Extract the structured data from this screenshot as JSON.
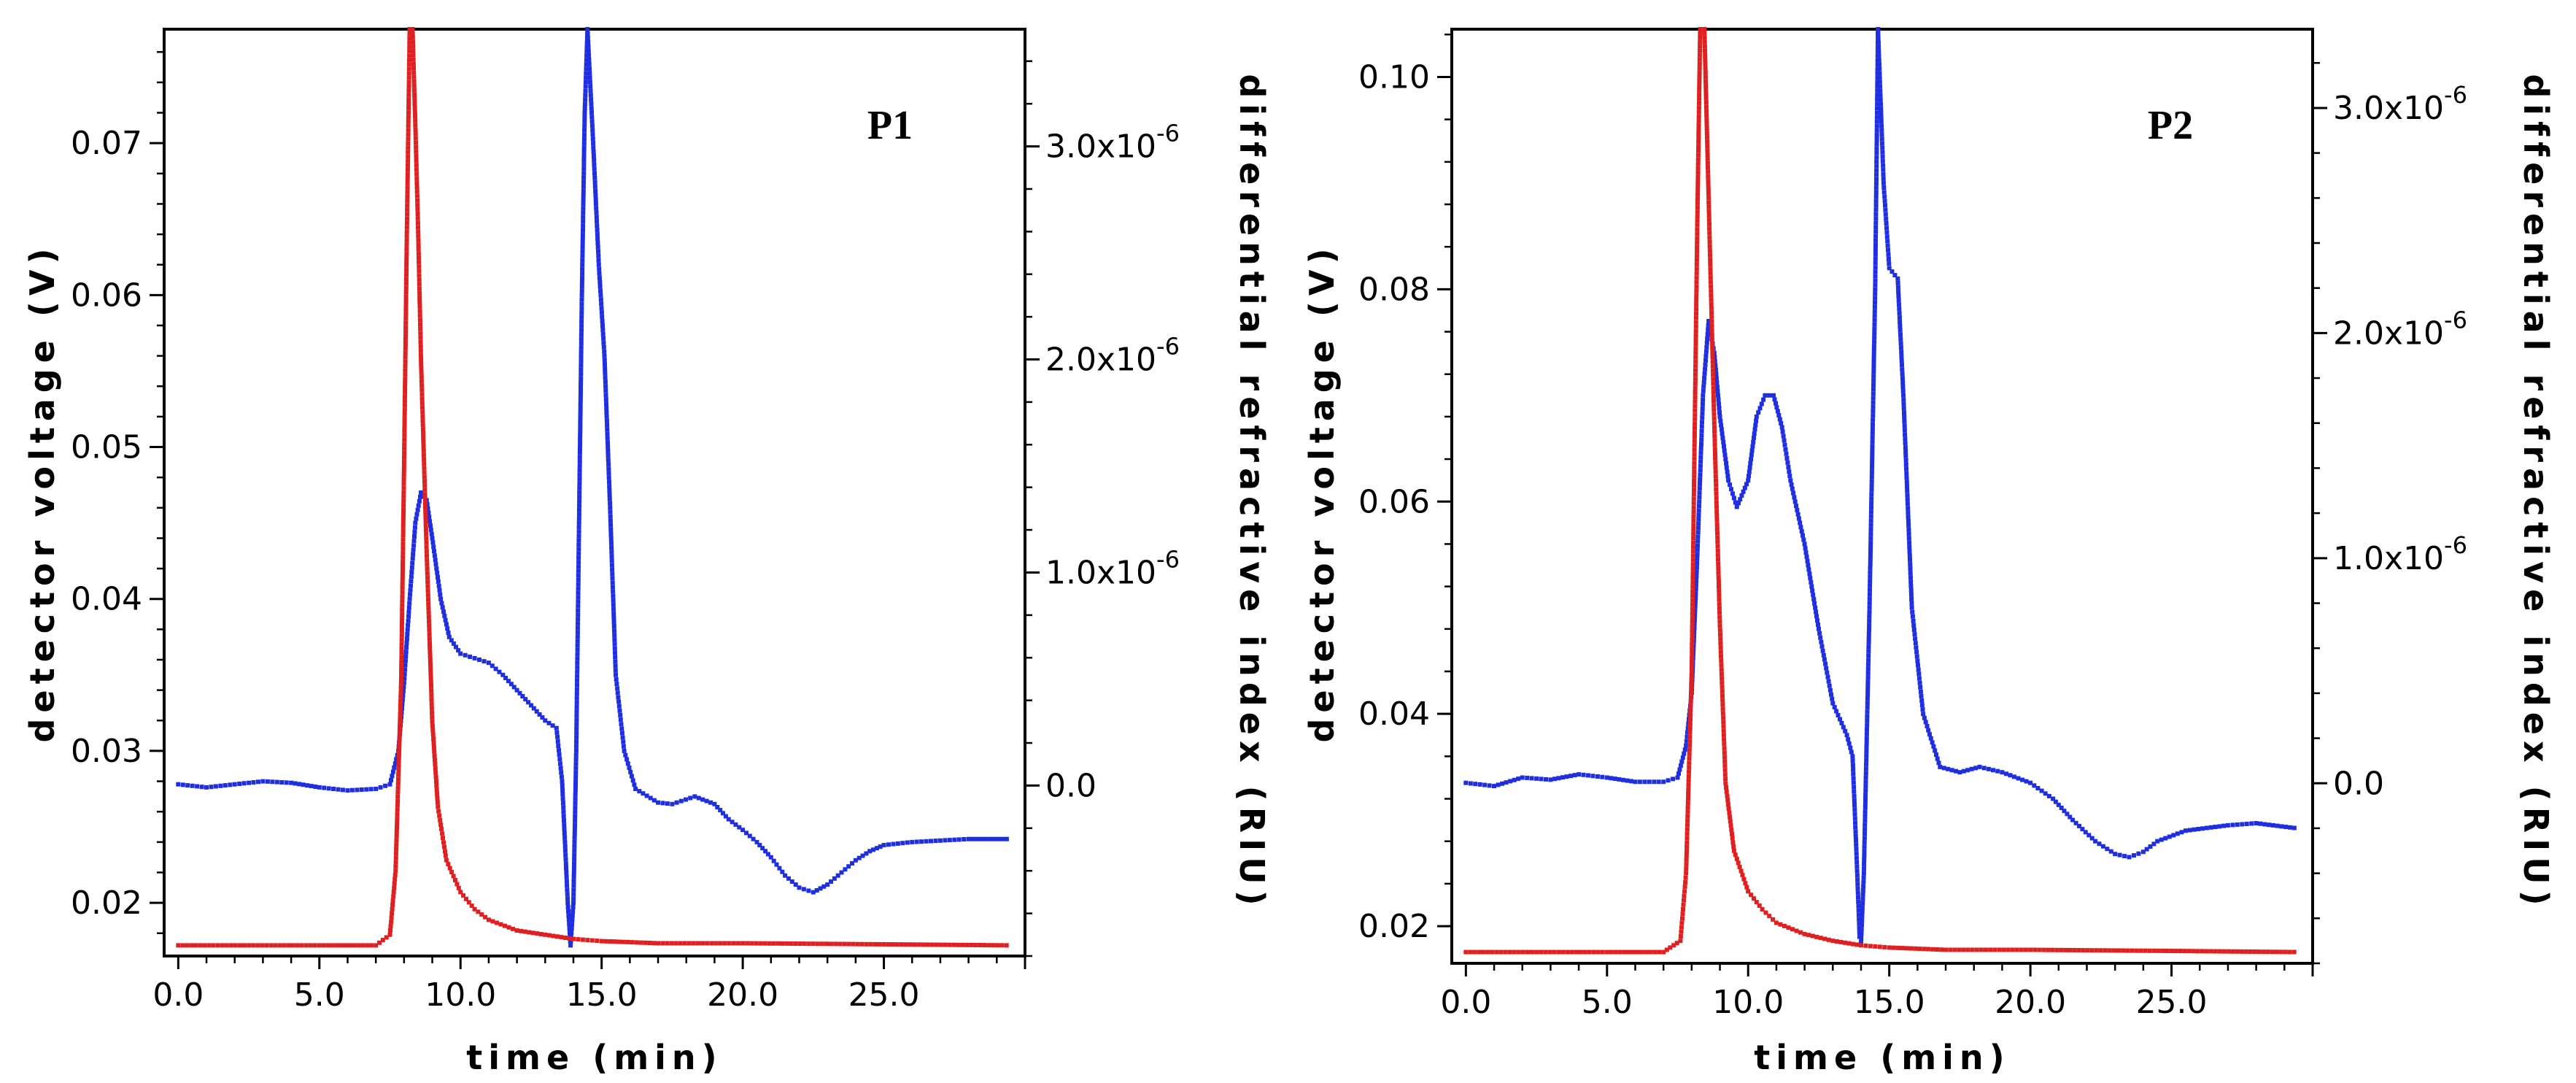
{
  "chart_data": [
    {
      "type": "line",
      "panel_label": "P1",
      "xlabel": "time (min)",
      "ylabel_left": "detector voltage (V)",
      "ylabel_right": "differential refractive index (RIU)",
      "xlim": [
        -0.5,
        30.0
      ],
      "ylim_left": [
        0.0165,
        0.0775
      ],
      "ylim_right": [
        -0.8,
        3.55
      ],
      "x_ticks": [
        0,
        5,
        10,
        15,
        20,
        25
      ],
      "x_tick_labels": [
        "0.0",
        "5.0",
        "10.0",
        "15.0",
        "20.0",
        "25.0"
      ],
      "y_left_ticks": [
        0.02,
        0.03,
        0.04,
        0.05,
        0.06,
        0.07
      ],
      "y_left_tick_labels": [
        "0.02",
        "0.03",
        "0.04",
        "0.05",
        "0.06",
        "0.07"
      ],
      "y_right_ticks": [
        0.0,
        1.0,
        2.0,
        3.0
      ],
      "y_right_tick_labels": [
        {
          "base": "0.0",
          "exp": ""
        },
        {
          "base": "1.0x10",
          "exp": "-6"
        },
        {
          "base": "2.0x10",
          "exp": "-6"
        },
        {
          "base": "3.0x10",
          "exp": "-6"
        }
      ],
      "series": [
        {
          "name": "detector voltage",
          "axis": "left",
          "color": "#1f2fe0",
          "points": [
            [
              0,
              0.0278
            ],
            [
              1,
              0.0276
            ],
            [
              2,
              0.0278
            ],
            [
              3,
              0.028
            ],
            [
              4,
              0.0279
            ],
            [
              5,
              0.0276
            ],
            [
              6,
              0.0274
            ],
            [
              7,
              0.0275
            ],
            [
              7.5,
              0.0278
            ],
            [
              7.8,
              0.03
            ],
            [
              8.0,
              0.0345
            ],
            [
              8.2,
              0.04
            ],
            [
              8.4,
              0.045
            ],
            [
              8.6,
              0.047
            ],
            [
              8.8,
              0.0465
            ],
            [
              9.0,
              0.044
            ],
            [
              9.3,
              0.04
            ],
            [
              9.6,
              0.0375
            ],
            [
              10.0,
              0.0364
            ],
            [
              10.5,
              0.0361
            ],
            [
              11.0,
              0.0358
            ],
            [
              11.5,
              0.035
            ],
            [
              12.0,
              0.034
            ],
            [
              12.5,
              0.033
            ],
            [
              13.0,
              0.032
            ],
            [
              13.4,
              0.0315
            ],
            [
              13.6,
              0.028
            ],
            [
              13.8,
              0.02
            ],
            [
              13.9,
              0.0172
            ],
            [
              14.0,
              0.02
            ],
            [
              14.1,
              0.03
            ],
            [
              14.2,
              0.045
            ],
            [
              14.3,
              0.06
            ],
            [
              14.4,
              0.072
            ],
            [
              14.5,
              0.0775
            ],
            [
              14.7,
              0.07
            ],
            [
              14.9,
              0.062
            ],
            [
              15.1,
              0.056
            ],
            [
              15.3,
              0.046
            ],
            [
              15.5,
              0.035
            ],
            [
              15.8,
              0.03
            ],
            [
              16.2,
              0.0275
            ],
            [
              17.0,
              0.0266
            ],
            [
              17.5,
              0.0265
            ],
            [
              18.3,
              0.027
            ],
            [
              19.0,
              0.0265
            ],
            [
              19.5,
              0.0255
            ],
            [
              20.0,
              0.0248
            ],
            [
              20.5,
              0.024
            ],
            [
              21.0,
              0.023
            ],
            [
              21.5,
              0.0218
            ],
            [
              22.0,
              0.021
            ],
            [
              22.5,
              0.0207
            ],
            [
              23.0,
              0.0212
            ],
            [
              23.5,
              0.022
            ],
            [
              24.0,
              0.0228
            ],
            [
              24.5,
              0.0234
            ],
            [
              25.0,
              0.0238
            ],
            [
              26.0,
              0.024
            ],
            [
              27.0,
              0.0241
            ],
            [
              28.0,
              0.0242
            ],
            [
              29.5,
              0.0242
            ]
          ]
        },
        {
          "name": "differential refractive index",
          "axis": "right",
          "color": "#e02020",
          "points": [
            [
              0,
              -0.75
            ],
            [
              5,
              -0.75
            ],
            [
              7.0,
              -0.75
            ],
            [
              7.5,
              -0.7
            ],
            [
              7.7,
              -0.4
            ],
            [
              7.9,
              0.5
            ],
            [
              8.0,
              1.5
            ],
            [
              8.1,
              2.6
            ],
            [
              8.2,
              3.55
            ],
            [
              8.3,
              3.55
            ],
            [
              8.4,
              3.1
            ],
            [
              8.5,
              2.6
            ],
            [
              8.6,
              2.0
            ],
            [
              8.8,
              1.1
            ],
            [
              9.0,
              0.3
            ],
            [
              9.2,
              -0.1
            ],
            [
              9.5,
              -0.35
            ],
            [
              10.0,
              -0.5
            ],
            [
              10.5,
              -0.58
            ],
            [
              11.0,
              -0.63
            ],
            [
              12.0,
              -0.68
            ],
            [
              13.0,
              -0.7
            ],
            [
              14.0,
              -0.72
            ],
            [
              15.0,
              -0.73
            ],
            [
              17.0,
              -0.74
            ],
            [
              20.0,
              -0.74
            ],
            [
              25.0,
              -0.745
            ],
            [
              29.5,
              -0.75
            ]
          ]
        }
      ]
    },
    {
      "type": "line",
      "panel_label": "P2",
      "xlabel": "time (min)",
      "ylabel_left": "detector voltage (V)",
      "ylabel_right": "differential refractive index (RIU)",
      "xlim": [
        -0.5,
        30.0
      ],
      "ylim_left": [
        0.0165,
        0.1045
      ],
      "ylim_right": [
        -0.8,
        3.35
      ],
      "x_ticks": [
        0,
        5,
        10,
        15,
        20,
        25
      ],
      "x_tick_labels": [
        "0.0",
        "5.0",
        "10.0",
        "15.0",
        "20.0",
        "25.0"
      ],
      "y_left_ticks": [
        0.02,
        0.04,
        0.06,
        0.08,
        0.1
      ],
      "y_left_tick_labels": [
        "0.02",
        "0.04",
        "0.06",
        "0.08",
        "0.10"
      ],
      "y_right_ticks": [
        0.0,
        1.0,
        2.0,
        3.0
      ],
      "y_right_tick_labels": [
        {
          "base": "0.0",
          "exp": ""
        },
        {
          "base": "1.0x10",
          "exp": "-6"
        },
        {
          "base": "2.0x10",
          "exp": "-6"
        },
        {
          "base": "3.0x10",
          "exp": "-6"
        }
      ],
      "series": [
        {
          "name": "detector voltage",
          "axis": "left",
          "color": "#1f2fe0",
          "points": [
            [
              0,
              0.0335
            ],
            [
              1,
              0.0332
            ],
            [
              2,
              0.034
            ],
            [
              3,
              0.0338
            ],
            [
              4,
              0.0343
            ],
            [
              5,
              0.034
            ],
            [
              6,
              0.0336
            ],
            [
              7,
              0.0336
            ],
            [
              7.5,
              0.034
            ],
            [
              7.8,
              0.037
            ],
            [
              8.0,
              0.042
            ],
            [
              8.2,
              0.055
            ],
            [
              8.4,
              0.07
            ],
            [
              8.6,
              0.077
            ],
            [
              8.8,
              0.074
            ],
            [
              9.0,
              0.068
            ],
            [
              9.3,
              0.062
            ],
            [
              9.6,
              0.0595
            ],
            [
              10.0,
              0.062
            ],
            [
              10.3,
              0.068
            ],
            [
              10.6,
              0.07
            ],
            [
              10.9,
              0.07
            ],
            [
              11.2,
              0.067
            ],
            [
              11.5,
              0.062
            ],
            [
              12.0,
              0.056
            ],
            [
              12.5,
              0.048
            ],
            [
              13.0,
              0.041
            ],
            [
              13.5,
              0.038
            ],
            [
              13.7,
              0.036
            ],
            [
              13.85,
              0.026
            ],
            [
              13.95,
              0.019
            ],
            [
              14.0,
              0.0185
            ],
            [
              14.1,
              0.025
            ],
            [
              14.3,
              0.05
            ],
            [
              14.5,
              0.08
            ],
            [
              14.6,
              0.1045
            ],
            [
              14.8,
              0.09
            ],
            [
              15.0,
              0.082
            ],
            [
              15.3,
              0.081
            ],
            [
              15.5,
              0.07
            ],
            [
              15.8,
              0.05
            ],
            [
              16.2,
              0.04
            ],
            [
              16.8,
              0.035
            ],
            [
              17.5,
              0.0345
            ],
            [
              18.2,
              0.035
            ],
            [
              19.0,
              0.0345
            ],
            [
              20.0,
              0.0335
            ],
            [
              20.8,
              0.032
            ],
            [
              21.5,
              0.03
            ],
            [
              22.3,
              0.028
            ],
            [
              23.0,
              0.0268
            ],
            [
              23.5,
              0.0265
            ],
            [
              24.0,
              0.027
            ],
            [
              24.5,
              0.028
            ],
            [
              25.5,
              0.029
            ],
            [
              27.0,
              0.0295
            ],
            [
              28.0,
              0.0297
            ],
            [
              29.5,
              0.0292
            ]
          ]
        },
        {
          "name": "differential refractive index",
          "axis": "right",
          "color": "#e02020",
          "points": [
            [
              0,
              -0.75
            ],
            [
              5,
              -0.75
            ],
            [
              7.0,
              -0.75
            ],
            [
              7.6,
              -0.7
            ],
            [
              7.8,
              -0.4
            ],
            [
              8.0,
              0.5
            ],
            [
              8.1,
              1.5
            ],
            [
              8.2,
              2.5
            ],
            [
              8.3,
              3.35
            ],
            [
              8.45,
              3.35
            ],
            [
              8.6,
              2.6
            ],
            [
              8.8,
              1.6
            ],
            [
              9.0,
              0.7
            ],
            [
              9.2,
              0.0
            ],
            [
              9.5,
              -0.3
            ],
            [
              10.0,
              -0.48
            ],
            [
              10.5,
              -0.56
            ],
            [
              11.0,
              -0.62
            ],
            [
              12.0,
              -0.67
            ],
            [
              13.0,
              -0.7
            ],
            [
              14.0,
              -0.72
            ],
            [
              15.0,
              -0.73
            ],
            [
              17.0,
              -0.74
            ],
            [
              20.0,
              -0.74
            ],
            [
              25.0,
              -0.745
            ],
            [
              29.5,
              -0.75
            ]
          ]
        }
      ]
    }
  ]
}
